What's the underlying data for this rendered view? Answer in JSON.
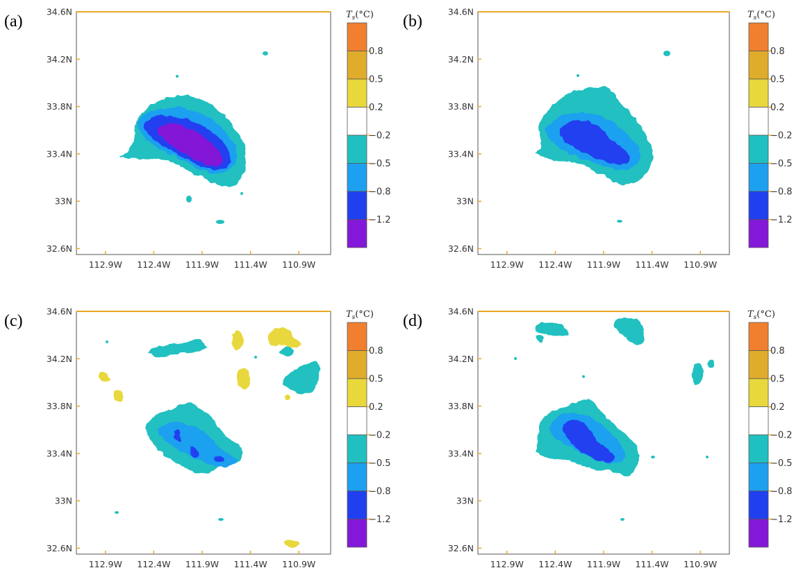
{
  "figure": {
    "panels": [
      {
        "label": "(a)",
        "map": "a"
      },
      {
        "label": "(b)",
        "map": "b"
      },
      {
        "label": "(c)",
        "map": "c"
      },
      {
        "label": "(d)",
        "map": "d"
      }
    ],
    "lat_ticks": [
      "34.6N",
      "34.2N",
      "33.8N",
      "33.4N",
      "33N",
      "32.6N"
    ],
    "lat_values": [
      34.6,
      34.2,
      33.8,
      33.4,
      33.0,
      32.6
    ],
    "lon_ticks": [
      "112.9W",
      "112.4W",
      "111.9W",
      "111.4W",
      "110.9W"
    ],
    "lon_values": [
      -112.9,
      -112.4,
      -111.9,
      -111.4,
      -110.9
    ],
    "extent": {
      "lon": [
        -113.2,
        -110.6
      ],
      "lat": [
        32.55,
        34.6
      ]
    },
    "colorbar": {
      "title_symbol": "T",
      "title_subscript": "s",
      "title_unit": "(°C)",
      "boundary_labels": [
        "0.8",
        "0.5",
        "0.2",
        "-0.2",
        "-0.5",
        "-0.8",
        "-1.2"
      ],
      "colors": [
        "#f08030",
        "#e0ac2c",
        "#e8d83c",
        "#ffffff",
        "#20c0c0",
        "#1ea0f0",
        "#2040f0",
        "#8418d8"
      ]
    },
    "colors": {
      "frame_top": "#e8a820",
      "tick": "#e8a820",
      "cyan": "#20c0c0",
      "lightblue": "#1ea0f0",
      "blue": "#2040f0",
      "purple": "#8418d8",
      "yellow": "#e8d83c"
    }
  }
}
